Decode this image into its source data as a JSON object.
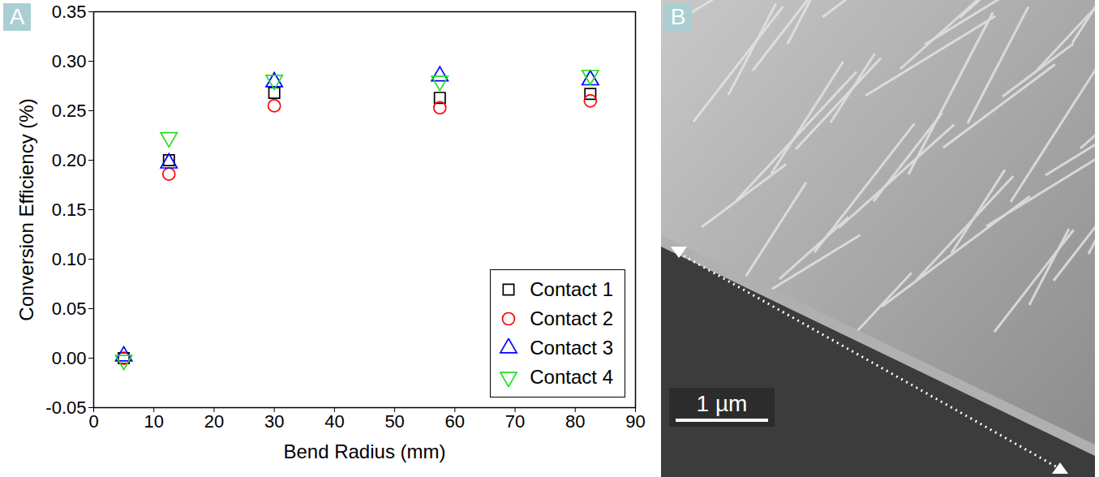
{
  "chart_data": {
    "type": "scatter",
    "panel_label": "A",
    "x_label": "Bend Radius (mm)",
    "y_label": "Conversion Efficiency (%)",
    "x": [
      5,
      12.5,
      30,
      57.5,
      82.5
    ],
    "series": [
      {
        "name": "Contact 1",
        "color": "#000000",
        "marker": "square",
        "values": [
          0.0,
          0.2,
          0.268,
          0.263,
          0.267
        ]
      },
      {
        "name": "Contact 2",
        "color": "#ff0000",
        "marker": "circle",
        "values": [
          0.0,
          0.186,
          0.255,
          0.253,
          0.26
        ]
      },
      {
        "name": "Contact 3",
        "color": "#0000ff",
        "marker": "triangle",
        "values": [
          0.002,
          0.197,
          0.279,
          0.285,
          0.281
        ]
      },
      {
        "name": "Contact 4",
        "color": "#22dd22",
        "marker": "triangle-down",
        "values": [
          -0.002,
          0.223,
          0.281,
          0.28,
          0.286
        ]
      }
    ],
    "xlim": [
      0,
      90
    ],
    "xticks": [
      0,
      10,
      20,
      30,
      40,
      50,
      60,
      70,
      80,
      90
    ],
    "ylim": [
      -0.05,
      0.35
    ],
    "yticks": [
      -0.05,
      {
        "value": 0,
        "label": "0.00"
      },
      {
        "value": 0.05,
        "label": "0.05"
      },
      {
        "value": 0.1,
        "label": "0.10"
      },
      0.15,
      {
        "value": 0.2,
        "label": "0.20"
      },
      0.25,
      {
        "value": 0.3,
        "label": "0.30"
      },
      0.35
    ],
    "legend": "lower right",
    "grid": false
  },
  "image_panel": {
    "panel_label": "B",
    "scale_bar_label": "1 µm"
  }
}
